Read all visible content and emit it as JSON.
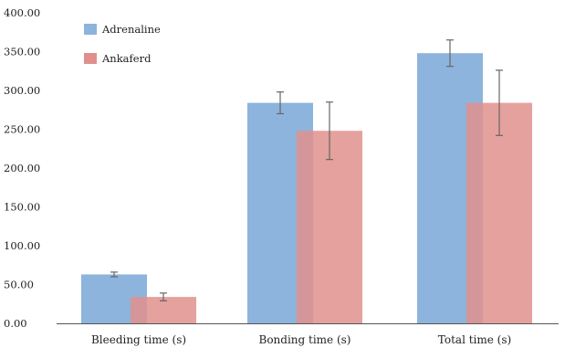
{
  "chart_data": {
    "type": "bar",
    "title": "",
    "xlabel": "",
    "ylabel": "",
    "categories": [
      "Bleeding time (s)",
      "Bonding time (s)",
      "Total time (s)"
    ],
    "ylim": [
      0,
      400
    ],
    "y_ticks": [
      "0.00",
      "50.00",
      "100.00",
      "150.00",
      "200.00",
      "250.00",
      "300.00",
      "350.00",
      "400.00"
    ],
    "grid": false,
    "legend_position": "top-left",
    "bars_overlap": true,
    "series": [
      {
        "name": "Adrenaline",
        "color": "#8db4dc",
        "values": [
          63,
          284,
          348
        ],
        "error": [
          3,
          14,
          17
        ]
      },
      {
        "name": "Ankaferd",
        "color": "#e0908c",
        "values": [
          34,
          248,
          284
        ],
        "error": [
          5,
          37,
          42
        ]
      }
    ]
  }
}
